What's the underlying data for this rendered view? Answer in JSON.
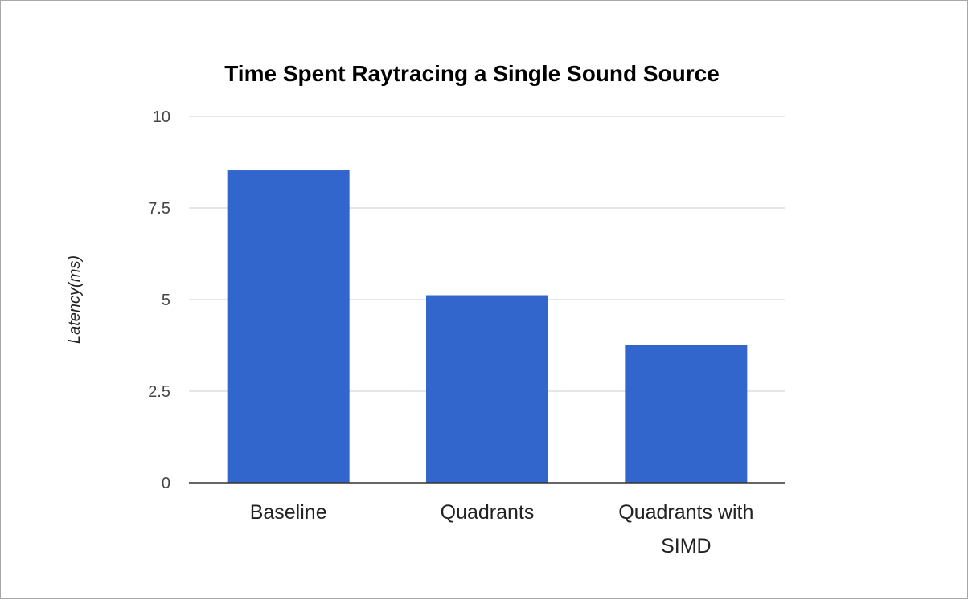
{
  "chart_data": {
    "type": "bar",
    "title": "Time Spent Raytracing a Single Sound Source",
    "xlabel": "",
    "ylabel": "Latency(ms)",
    "categories": [
      "Baseline",
      "Quadrants",
      "Quadrants with SIMD"
    ],
    "category_lines": [
      [
        "Baseline"
      ],
      [
        "Quadrants"
      ],
      [
        "Quadrants with",
        "SIMD"
      ]
    ],
    "values": [
      8.53,
      5.12,
      3.76
    ],
    "ylim": [
      0,
      10
    ],
    "yticks": [
      0,
      2.5,
      5,
      7.5,
      10
    ],
    "ytick_labels": [
      "0",
      "2.5",
      "5",
      "7.5",
      "10"
    ],
    "grid": true,
    "legend": "none",
    "colors": {
      "bar": "#3366cc",
      "grid": "#cccccc",
      "baseline": "#333333"
    }
  }
}
